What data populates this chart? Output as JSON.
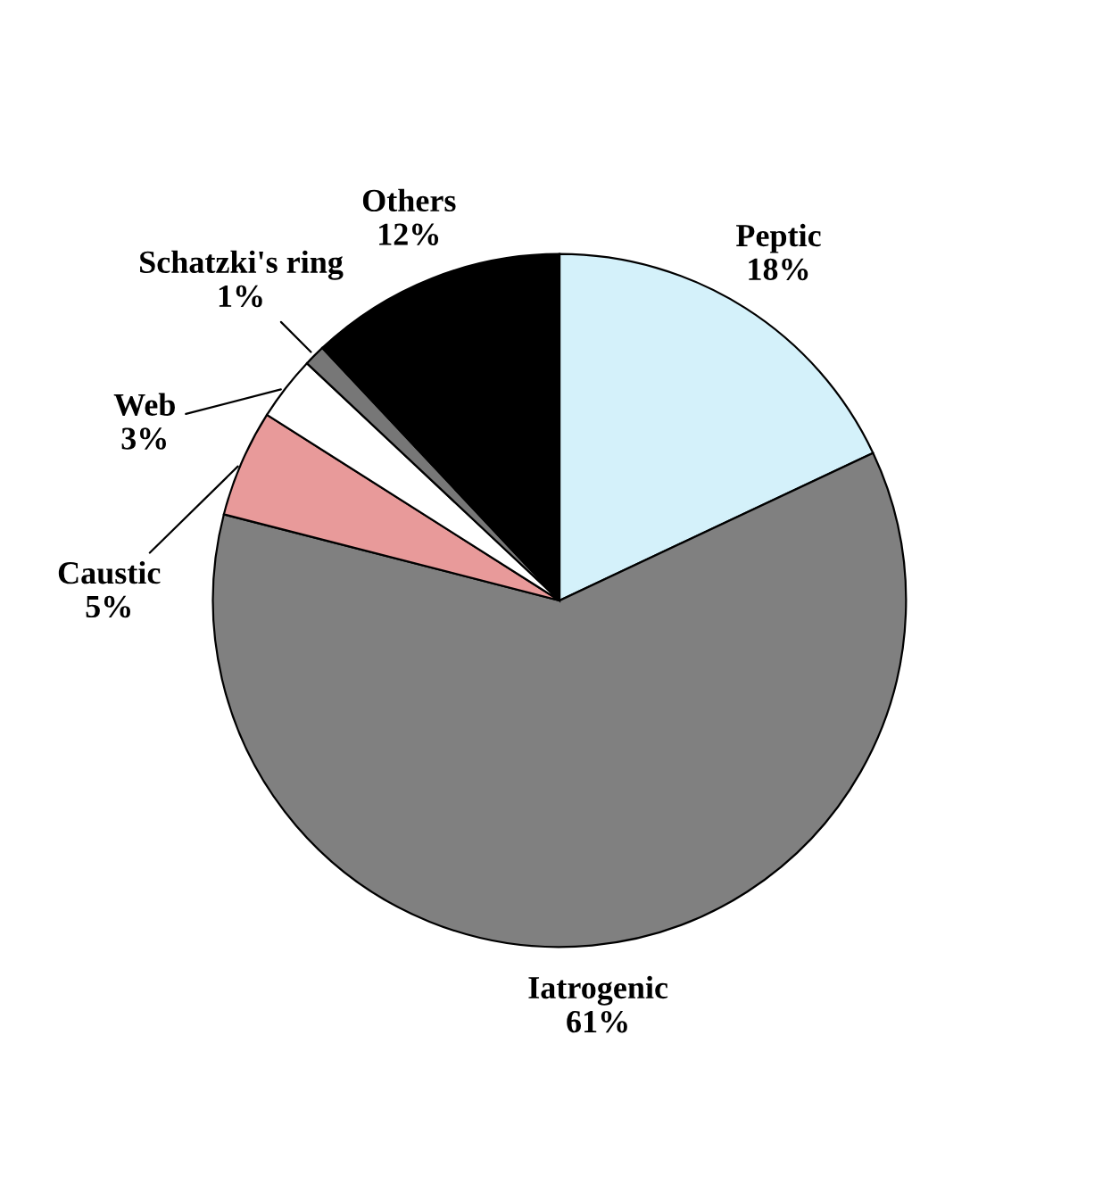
{
  "chart_data": {
    "type": "pie",
    "categories": [
      "Peptic",
      "Iatrogenic",
      "Caustic",
      "Web",
      "Schatzki's ring",
      "Others"
    ],
    "values": [
      18,
      61,
      5,
      3,
      1,
      12
    ],
    "value_labels": [
      "18%",
      "61%",
      "5%",
      "3%",
      "1%",
      "12%"
    ],
    "colors": [
      "#d4f1fa",
      "#808080",
      "#e89a9a",
      "#ffffff",
      "#777777",
      "#000000"
    ]
  }
}
